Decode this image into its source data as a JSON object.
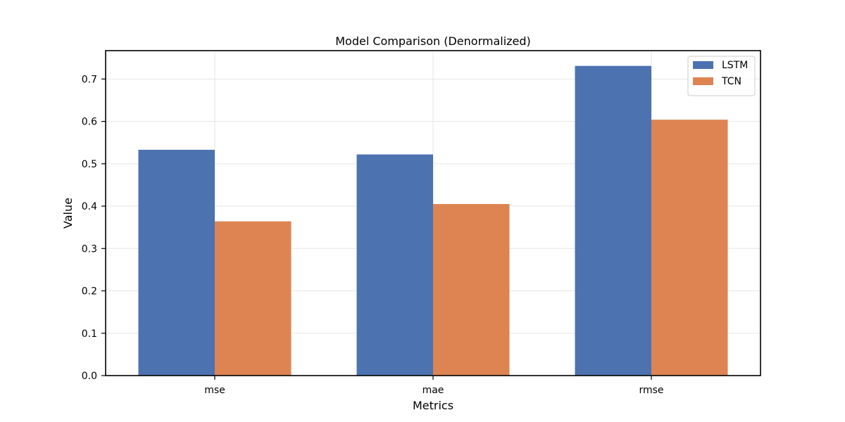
{
  "chart_data": {
    "type": "bar",
    "title": "Model Comparison (Denormalized)",
    "xlabel": "Metrics",
    "ylabel": "Value",
    "categories": [
      "mse",
      "mae",
      "rmse"
    ],
    "series": [
      {
        "name": "LSTM",
        "values": [
          0.533,
          0.522,
          0.731
        ],
        "color": "#4c72b0"
      },
      {
        "name": "TCN",
        "values": [
          0.364,
          0.405,
          0.604
        ],
        "color": "#dd8452"
      }
    ],
    "ylim": [
      0,
      0.767
    ],
    "yticks": [
      0.0,
      0.1,
      0.2,
      0.3,
      0.4,
      0.5,
      0.6,
      0.7
    ],
    "ytick_labels": [
      "0.0",
      "0.1",
      "0.2",
      "0.3",
      "0.4",
      "0.5",
      "0.6",
      "0.7"
    ],
    "grid": true,
    "legend_position": "top-right"
  }
}
